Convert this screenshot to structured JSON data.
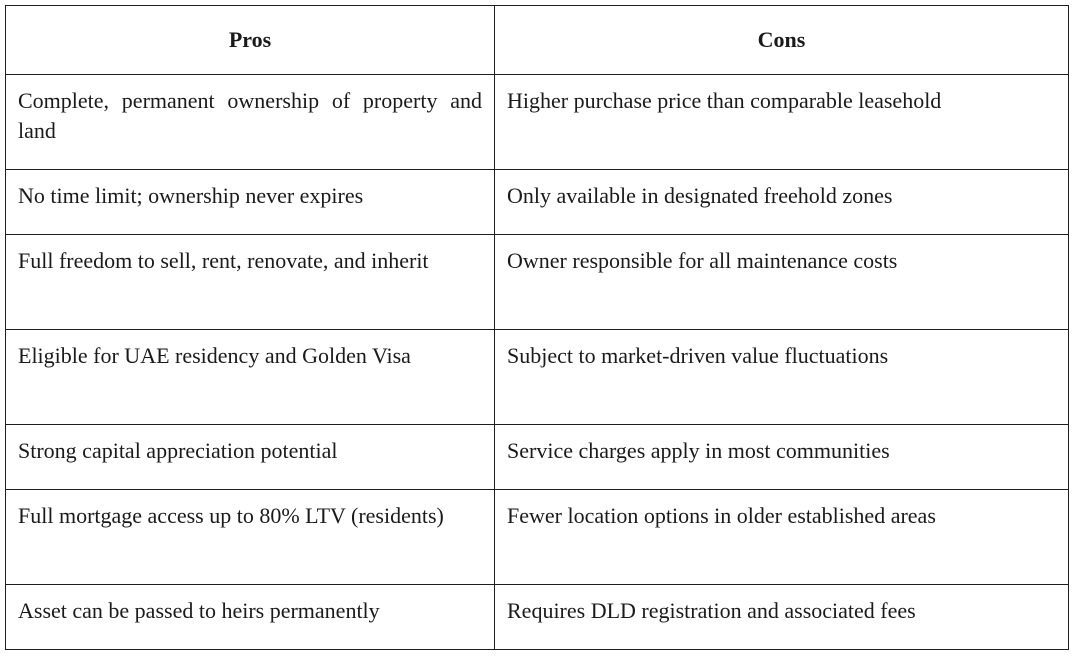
{
  "table": {
    "headers": [
      "Pros",
      "Cons"
    ],
    "rows": [
      {
        "pro": "Complete, permanent ownership of property and land",
        "con": "Higher purchase price than comparable leasehold"
      },
      {
        "pro": "No time limit; ownership never expires",
        "con": "Only available in designated freehold zones"
      },
      {
        "pro": "Full freedom to sell, rent, renovate, and inherit",
        "con": "Owner responsible for all maintenance costs"
      },
      {
        "pro": "Eligible for UAE residency and Golden Visa",
        "con": "Subject to market-driven value fluctuations"
      },
      {
        "pro": "Strong capital appreciation potential",
        "con": "Service charges apply in most communities"
      },
      {
        "pro": "Full mortgage access up to 80% LTV (residents)",
        "con": "Fewer location options in older established areas"
      },
      {
        "pro": "Asset can be passed to heirs permanently",
        "con": "Requires DLD registration and associated fees"
      }
    ]
  }
}
